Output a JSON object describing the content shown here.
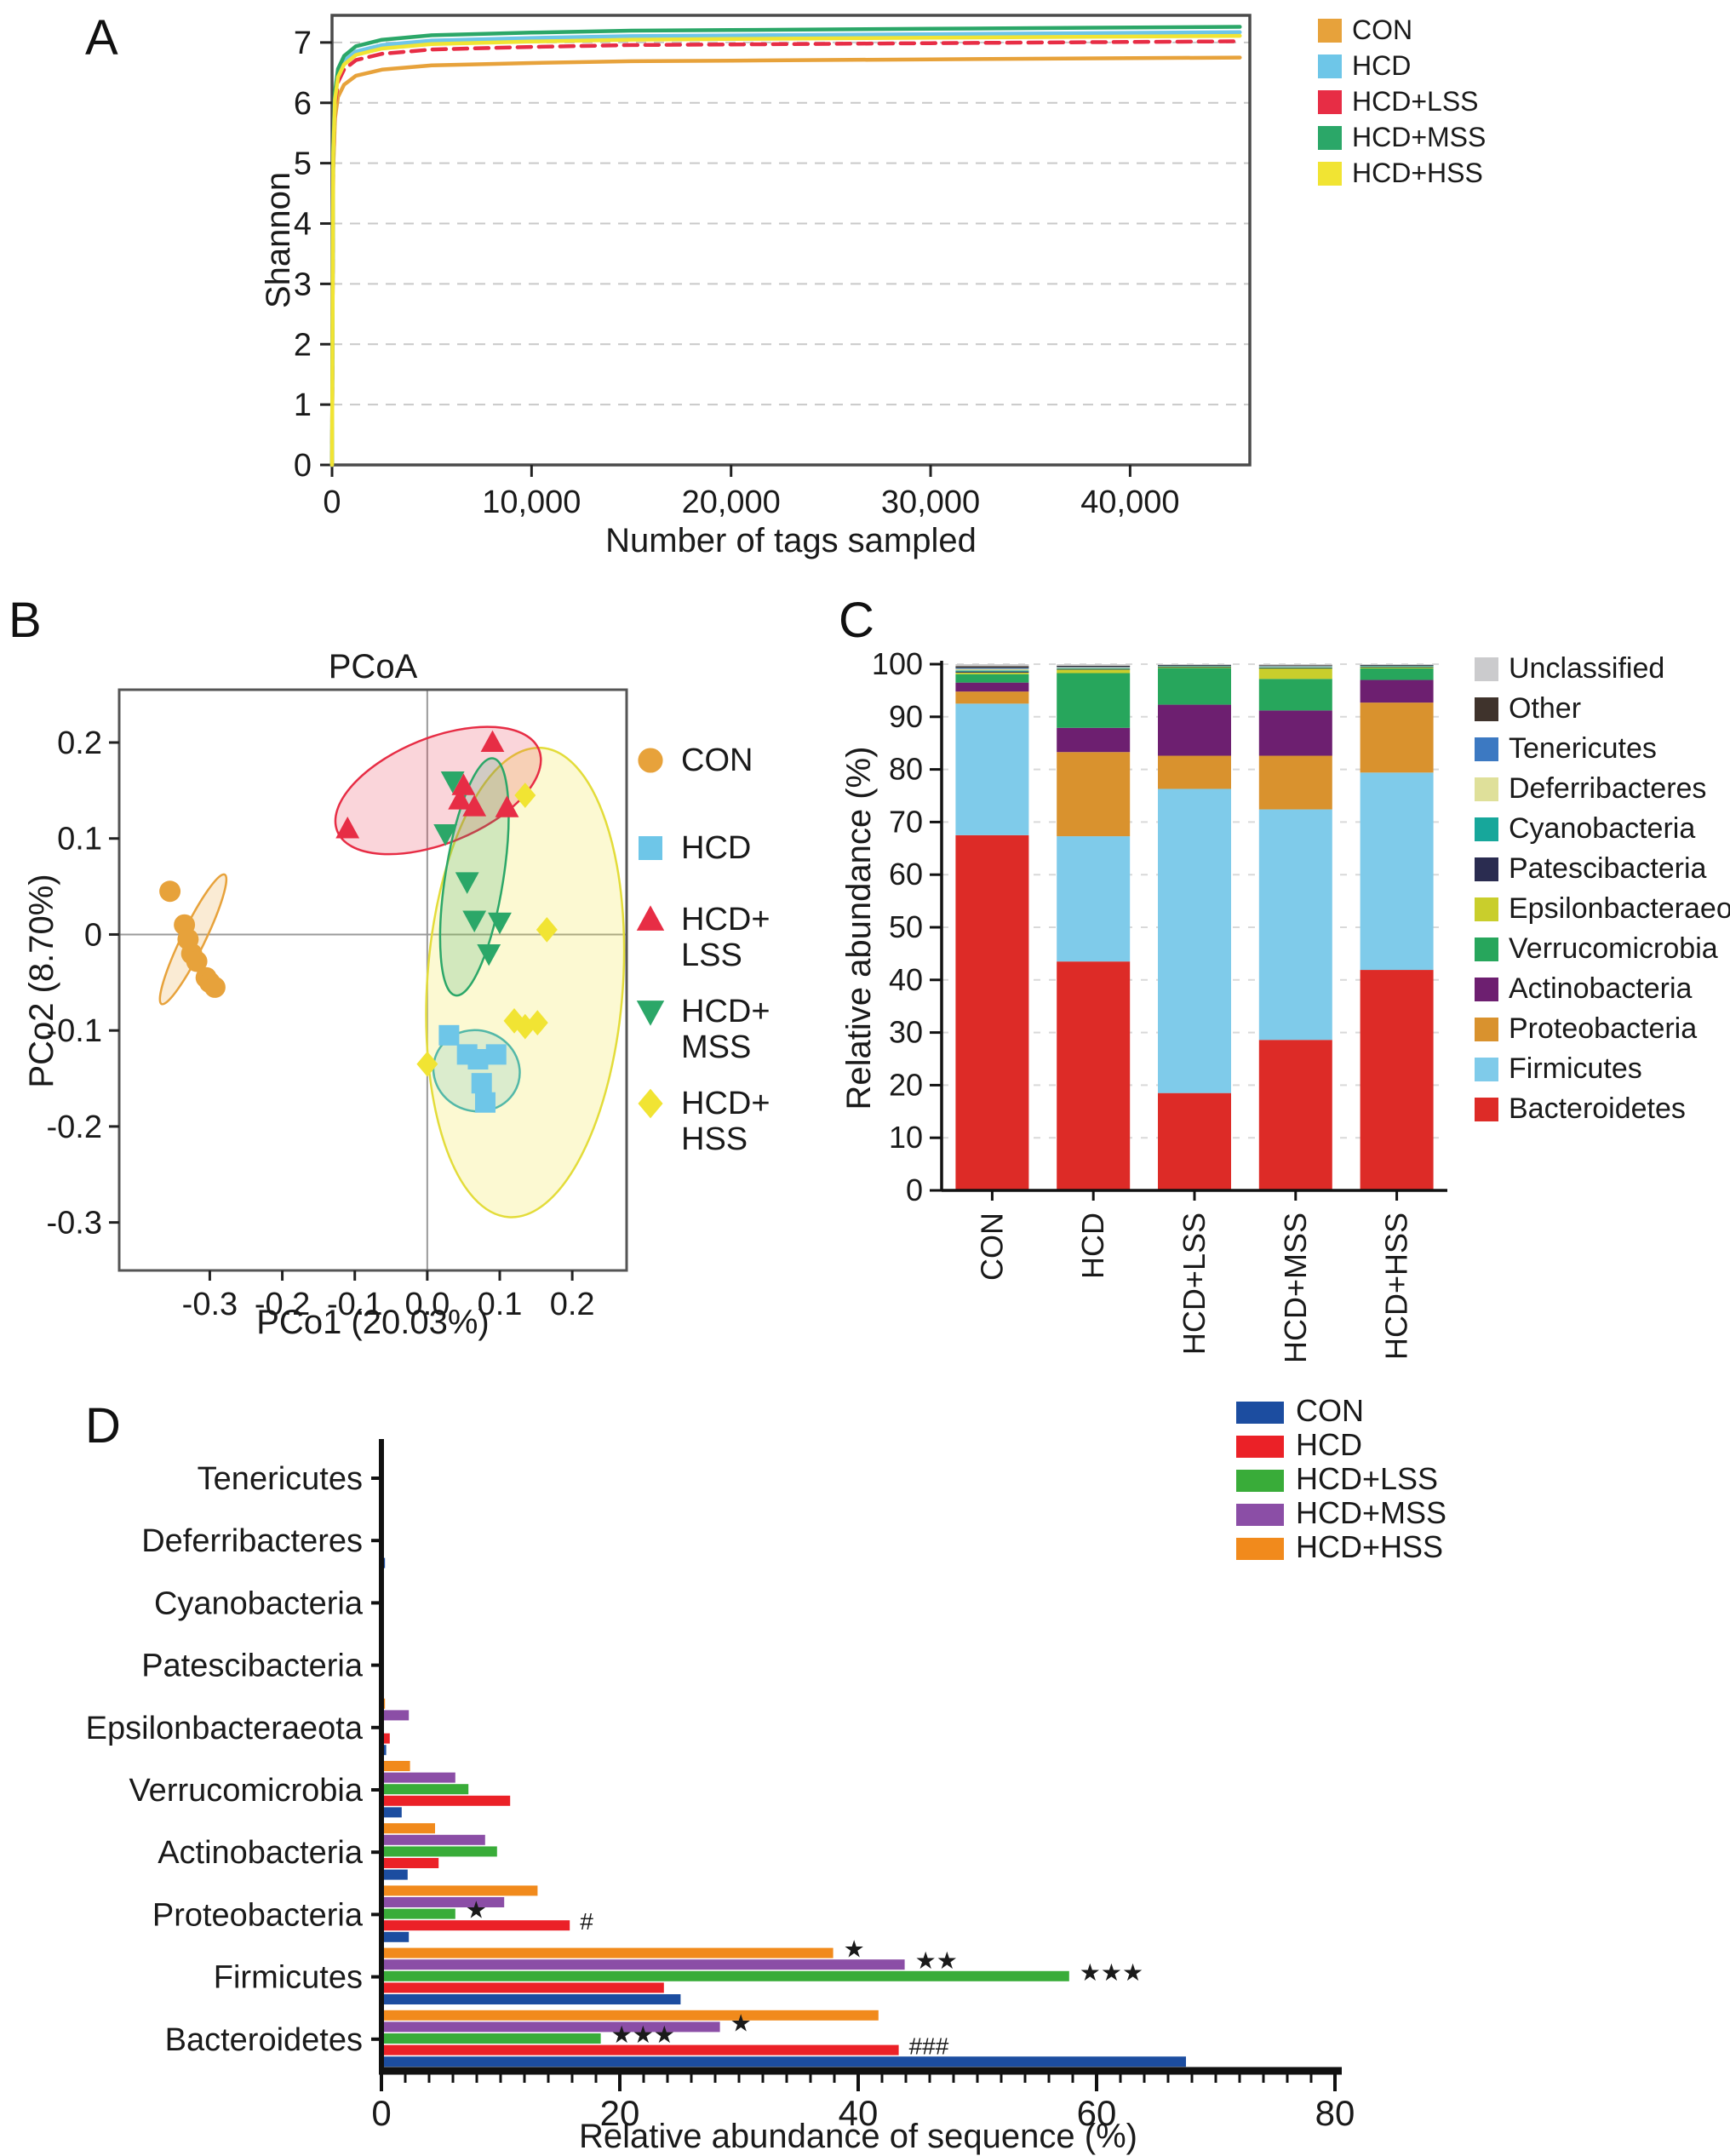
{
  "panels": {
    "a": "A",
    "b": "B",
    "c": "C",
    "d": "D"
  },
  "group_colors_ab": {
    "CON": "#E7A23B",
    "HCD": "#6EC6E8",
    "HCD+LSS": "#E72D45",
    "HCD+MSS": "#2BA768",
    "HCD+HSS": "#F1E433"
  },
  "chart_data": [
    {
      "id": "A",
      "type": "line",
      "title": "",
      "xlabel": "Number of tags sampled",
      "ylabel": "Shannon",
      "xlim": [
        0,
        46000
      ],
      "ylim": [
        0,
        7.45
      ],
      "xticks": [
        0,
        10000,
        20000,
        30000,
        40000
      ],
      "xtick_labels": [
        "0",
        "10,000",
        "20,000",
        "30,000",
        "40,000"
      ],
      "yticks": [
        0,
        1,
        2,
        3,
        4,
        5,
        6,
        7
      ],
      "grid": "dashed-horizontal",
      "legend_position": "top-right-outside",
      "base_x": [
        0,
        60,
        150,
        300,
        600,
        1200,
        2500,
        5000,
        10000,
        15000,
        20000,
        30000,
        45500
      ],
      "base_y": [
        0,
        4.9,
        5.75,
        6.1,
        6.3,
        6.45,
        6.55,
        6.62,
        6.66,
        6.69,
        6.7,
        6.72,
        6.75
      ],
      "base_plateau": 6.75,
      "series": [
        {
          "name": "CON",
          "color": "#E7A23B",
          "plateau": 6.75,
          "dashed": false
        },
        {
          "name": "HCD",
          "color": "#6EC6E8",
          "plateau": 7.17,
          "dashed": false
        },
        {
          "name": "HCD+LSS",
          "color": "#E72D45",
          "plateau": 7.02,
          "dashed": true
        },
        {
          "name": "HCD+MSS",
          "color": "#2BA768",
          "plateau": 7.26,
          "dashed": false
        },
        {
          "name": "HCD+HSS",
          "color": "#F1E433",
          "plateau": 7.11,
          "dashed": false
        }
      ]
    },
    {
      "id": "B",
      "type": "scatter",
      "title": "PCoA",
      "xlabel": "PCo1 (20.03%)",
      "ylabel": "PCo2 (8.70%)",
      "xlim": [
        -0.425,
        0.275
      ],
      "ylim": [
        -0.35,
        0.255
      ],
      "xticks": [
        -0.3,
        -0.2,
        -0.1,
        0.0,
        0.1,
        0.2
      ],
      "xtick_labels": [
        "-0.3",
        "-0.2",
        "-0.1",
        "0.0",
        "0.1",
        "0.2"
      ],
      "yticks": [
        0.2,
        0.1,
        0,
        -0.1,
        -0.2,
        -0.3
      ],
      "ytick_labels": [
        "0.2",
        "0.1",
        "0",
        "-0.1",
        "-0.2",
        "-0.3"
      ],
      "crosshair_at": [
        0,
        0
      ],
      "groups": [
        {
          "name": "CON",
          "legend_lines": [
            "CON"
          ],
          "marker": "circle",
          "color": "#E7A23B",
          "points": [
            [
              -0.355,
              0.045
            ],
            [
              -0.335,
              0.01
            ],
            [
              -0.33,
              -0.005
            ],
            [
              -0.325,
              -0.02
            ],
            [
              -0.318,
              -0.028
            ],
            [
              -0.305,
              -0.045
            ],
            [
              -0.3,
              -0.05
            ],
            [
              -0.293,
              -0.055
            ]
          ],
          "ellipse": {
            "cx": -0.323,
            "cy": -0.005,
            "rx": 0.016,
            "ry": 0.075,
            "rot": 26
          }
        },
        {
          "name": "HCD",
          "legend_lines": [
            "HCD"
          ],
          "marker": "square",
          "color": "#6EC6E8",
          "points": [
            [
              0.03,
              -0.105
            ],
            [
              0.055,
              -0.125
            ],
            [
              0.07,
              -0.13
            ],
            [
              0.095,
              -0.125
            ],
            [
              0.075,
              -0.155
            ],
            [
              0.08,
              -0.175
            ]
          ],
          "ellipse": {
            "cx": 0.068,
            "cy": -0.142,
            "rx": 0.06,
            "ry": 0.042,
            "rot": 18
          }
        },
        {
          "name": "HCD+LSS",
          "legend_lines": [
            "HCD+",
            "LSS"
          ],
          "marker": "triangle-up",
          "color": "#E72D45",
          "points": [
            [
              -0.11,
              0.11
            ],
            [
              0.05,
              0.155
            ],
            [
              0.045,
              0.14
            ],
            [
              0.065,
              0.133
            ],
            [
              0.09,
              0.2
            ],
            [
              0.11,
              0.132
            ]
          ],
          "ellipse": {
            "cx": 0.015,
            "cy": 0.15,
            "rx": 0.15,
            "ry": 0.055,
            "rot": -22
          }
        },
        {
          "name": "HCD+MSS",
          "legend_lines": [
            "HCD+",
            "MSS"
          ],
          "marker": "triangle-down",
          "color": "#2BA768",
          "points": [
            [
              0.035,
              0.16
            ],
            [
              0.025,
              0.105
            ],
            [
              0.055,
              0.055
            ],
            [
              0.065,
              0.015
            ],
            [
              0.1,
              0.013
            ],
            [
              0.085,
              -0.02
            ]
          ],
          "ellipse": {
            "cx": 0.065,
            "cy": 0.06,
            "rx": 0.04,
            "ry": 0.125,
            "rot": 9
          }
        },
        {
          "name": "HCD+HSS",
          "legend_lines": [
            "HCD+",
            "HSS"
          ],
          "marker": "diamond",
          "color": "#F1E433",
          "points": [
            [
              0.135,
              0.145
            ],
            [
              0.165,
              0.005
            ],
            [
              0.12,
              -0.09
            ],
            [
              0.135,
              -0.096
            ],
            [
              0.152,
              -0.092
            ],
            [
              0.0,
              -0.135
            ]
          ],
          "ellipse": {
            "cx": 0.135,
            "cy": -0.05,
            "rx": 0.135,
            "ry": 0.245,
            "rot": 4
          }
        }
      ]
    },
    {
      "id": "C",
      "type": "bar",
      "subtype": "stacked-vertical",
      "title": "",
      "xlabel": "",
      "ylabel": "Relative abundance (%)",
      "ylim": [
        0,
        100
      ],
      "yticks": [
        0,
        10,
        20,
        30,
        40,
        50,
        60,
        70,
        80,
        90,
        100
      ],
      "categories": [
        "CON",
        "HCD",
        "HCD+LSS",
        "HCD+MSS",
        "HCD+HSS"
      ],
      "legend_order_top_to_bottom": [
        "Unclassified",
        "Other",
        "Tenericutes",
        "Deferribacteres",
        "Cyanobacteria",
        "Patescibacteria",
        "Epsilonbacteraeota",
        "Verrucomicrobia",
        "Actinobacteria",
        "Proteobacteria",
        "Firmicutes",
        "Bacteroidetes"
      ],
      "stack_order_bottom_to_top": [
        "Bacteroidetes",
        "Firmicutes",
        "Proteobacteria",
        "Actinobacteria",
        "Verrucomicrobia",
        "Epsilonbacteraeota",
        "Patescibacteria",
        "Cyanobacteria",
        "Deferribacteres",
        "Tenericutes",
        "Other",
        "Unclassified"
      ],
      "phylum_colors": {
        "Unclassified": "#CBCBCD",
        "Other": "#3F332C",
        "Tenericutes": "#3C79C2",
        "Deferribacteres": "#DFE09A",
        "Cyanobacteria": "#17A79B",
        "Patescibacteria": "#2A2C50",
        "Epsilonbacteraeota": "#C9CE2C",
        "Verrucomicrobia": "#27A65C",
        "Actinobacteria": "#6D1F70",
        "Proteobacteria": "#D9922E",
        "Firmicutes": "#7FCBEA",
        "Bacteroidetes": "#DD2B27"
      },
      "values": {
        "CON": {
          "Bacteroidetes": 67.5,
          "Firmicutes": 25.0,
          "Proteobacteria": 2.3,
          "Actinobacteria": 1.7,
          "Verrucomicrobia": 1.6,
          "Epsilonbacteraeota": 0.3,
          "Patescibacteria": 0.2,
          "Cyanobacteria": 0.2,
          "Deferribacteres": 0.3,
          "Tenericutes": 0.2,
          "Other": 0.3,
          "Unclassified": 0.4
        },
        "HCD": {
          "Bacteroidetes": 43.5,
          "Firmicutes": 23.8,
          "Proteobacteria": 16.0,
          "Actinobacteria": 4.6,
          "Verrucomicrobia": 10.4,
          "Epsilonbacteraeota": 0.7,
          "Patescibacteria": 0.1,
          "Cyanobacteria": 0.1,
          "Deferribacteres": 0.2,
          "Tenericutes": 0.1,
          "Other": 0.2,
          "Unclassified": 0.3
        },
        "HCD+LSS": {
          "Bacteroidetes": 18.5,
          "Firmicutes": 57.8,
          "Proteobacteria": 6.3,
          "Actinobacteria": 9.7,
          "Verrucomicrobia": 7.0,
          "Epsilonbacteraeota": 0.15,
          "Patescibacteria": 0.1,
          "Cyanobacteria": 0.1,
          "Deferribacteres": 0.1,
          "Tenericutes": 0.05,
          "Other": 0.05,
          "Unclassified": 0.15
        },
        "HCD+MSS": {
          "Bacteroidetes": 28.6,
          "Firmicutes": 43.8,
          "Proteobacteria": 10.2,
          "Actinobacteria": 8.6,
          "Verrucomicrobia": 6.0,
          "Epsilonbacteraeota": 2.0,
          "Patescibacteria": 0.1,
          "Cyanobacteria": 0.1,
          "Deferribacteres": 0.2,
          "Tenericutes": 0.1,
          "Other": 0.1,
          "Unclassified": 0.2
        },
        "HCD+HSS": {
          "Bacteroidetes": 41.9,
          "Firmicutes": 37.5,
          "Proteobacteria": 13.3,
          "Actinobacteria": 4.3,
          "Verrucomicrobia": 2.2,
          "Epsilonbacteraeota": 0.2,
          "Patescibacteria": 0.1,
          "Cyanobacteria": 0.1,
          "Deferribacteres": 0.15,
          "Tenericutes": 0.05,
          "Other": 0.05,
          "Unclassified": 0.15
        }
      }
    },
    {
      "id": "D",
      "type": "bar",
      "subtype": "grouped-horizontal",
      "title": "",
      "xlabel": "Relative abundance of sequence (%)",
      "ylabel": "",
      "xlim": [
        0,
        80
      ],
      "xticks": [
        0,
        20,
        40,
        60,
        80
      ],
      "minor_tick_step": 2,
      "categories_top_to_bottom": [
        "Tenericutes",
        "Deferribacteres",
        "Cyanobacteria",
        "Patescibacteria",
        "Epsilonbacteraeota",
        "Verrucomicrobia",
        "Actinobacteria",
        "Proteobacteria",
        "Firmicutes",
        "Bacteroidetes"
      ],
      "series": [
        {
          "name": "CON",
          "color": "#1C4DA0"
        },
        {
          "name": "HCD",
          "color": "#EB2127"
        },
        {
          "name": "HCD+LSS",
          "color": "#39AC39"
        },
        {
          "name": "HCD+MSS",
          "color": "#8B4EA6"
        },
        {
          "name": "HCD+HSS",
          "color": "#F18A1C"
        }
      ],
      "values": {
        "Tenericutes": {
          "CON": 0.15,
          "HCD": 0.08,
          "HCD+LSS": 0.08,
          "HCD+MSS": 0.08,
          "HCD+HSS": 0.08
        },
        "Deferribacteres": {
          "CON": 0.3,
          "HCD": 0.15,
          "HCD+LSS": 0.08,
          "HCD+MSS": 0.15,
          "HCD+HSS": 0.08
        },
        "Cyanobacteria": {
          "CON": 0.2,
          "HCD": 0.1,
          "HCD+LSS": 0.08,
          "HCD+MSS": 0.1,
          "HCD+HSS": 0.08
        },
        "Patescibacteria": {
          "CON": 0.15,
          "HCD": 0.08,
          "HCD+LSS": 0.08,
          "HCD+MSS": 0.08,
          "HCD+HSS": 0.08
        },
        "Epsilonbacteraeota": {
          "CON": 0.4,
          "HCD": 0.7,
          "HCD+LSS": 0.15,
          "HCD+MSS": 2.3,
          "HCD+HSS": 0.3
        },
        "Verrucomicrobia": {
          "CON": 1.7,
          "HCD": 10.8,
          "HCD+LSS": 7.3,
          "HCD+MSS": 6.2,
          "HCD+HSS": 2.4
        },
        "Actinobacteria": {
          "CON": 2.2,
          "HCD": 4.8,
          "HCD+LSS": 9.7,
          "HCD+MSS": 8.7,
          "HCD+HSS": 4.5
        },
        "Proteobacteria": {
          "CON": 2.3,
          "HCD": 15.8,
          "HCD+LSS": 6.2,
          "HCD+MSS": 10.3,
          "HCD+HSS": 13.1
        },
        "Firmicutes": {
          "CON": 25.1,
          "HCD": 23.7,
          "HCD+LSS": 57.7,
          "HCD+MSS": 43.9,
          "HCD+HSS": 37.9
        },
        "Bacteroidetes": {
          "CON": 67.5,
          "HCD": 43.4,
          "HCD+LSS": 18.4,
          "HCD+MSS": 28.4,
          "HCD+HSS": 41.7
        }
      },
      "annotations": {
        "Proteobacteria": {
          "HCD": "#",
          "HCD+LSS": "*"
        },
        "Firmicutes": {
          "HCD+LSS": "***",
          "HCD+MSS": "**",
          "HCD+HSS": "*"
        },
        "Bacteroidetes": {
          "HCD": "###",
          "HCD+LSSS_ignore": "",
          "HCD+LSS": "***",
          "HCD+MSS": "*"
        }
      }
    }
  ]
}
